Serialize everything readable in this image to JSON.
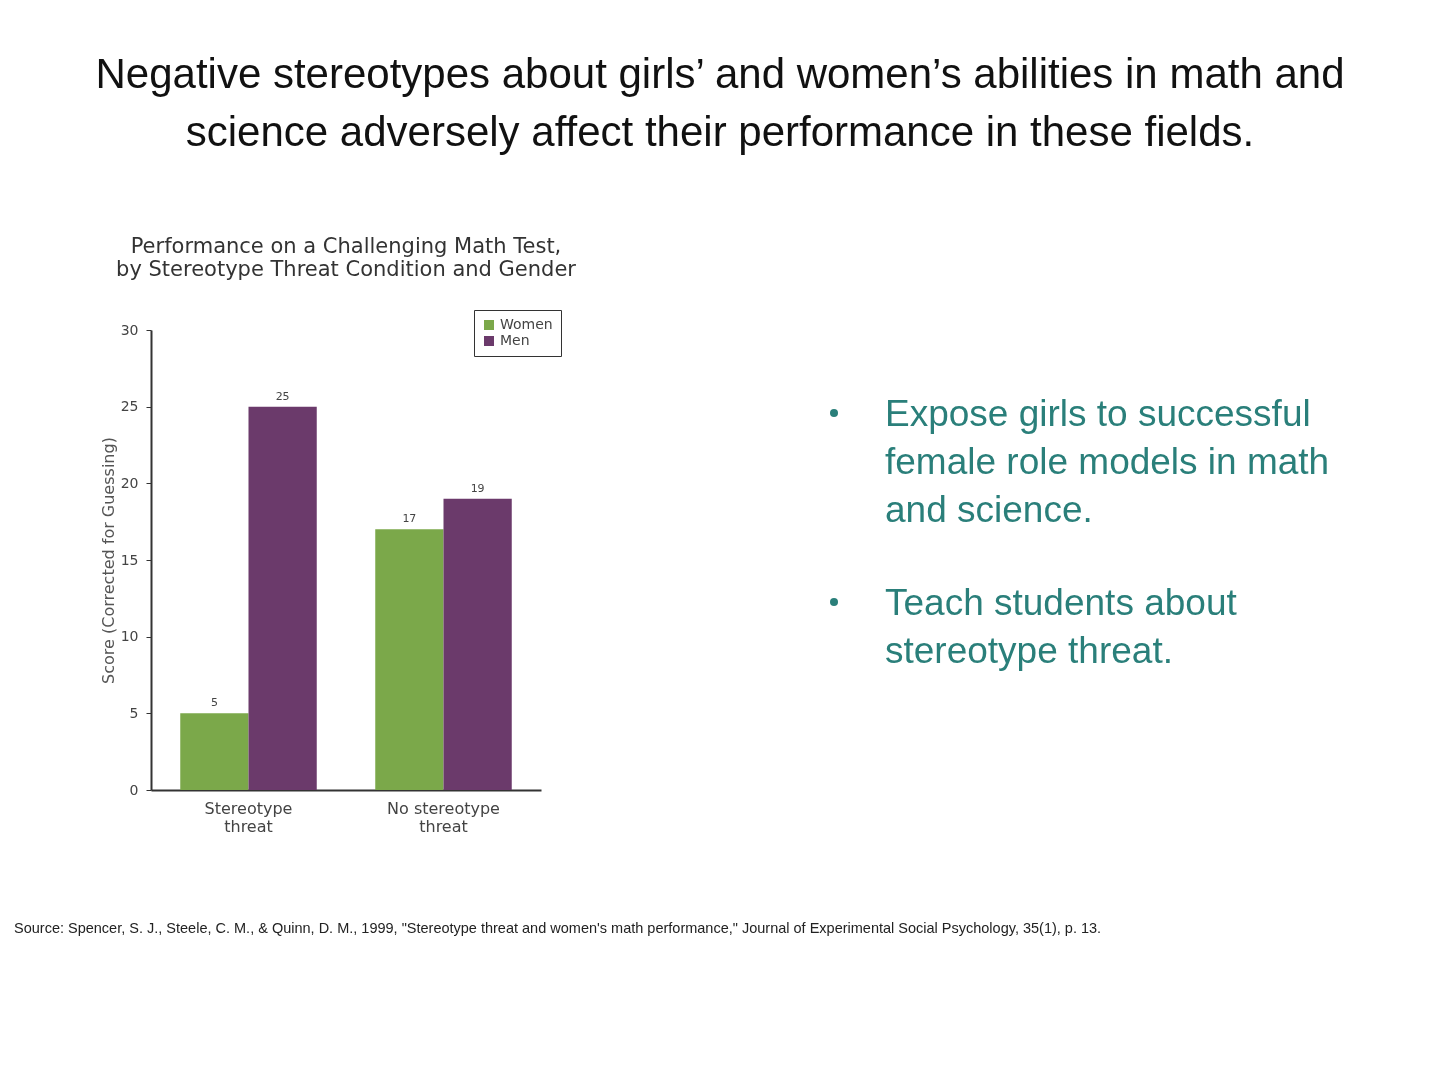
{
  "chart_data": {
    "type": "bar",
    "title": "Negative stereotypes about girls’ and women’s abilities in math and science adversely affect their performance in these fields.",
    "subtitle": "Performance on a Challenging Math Test, by Stereotype Threat Condition and Gender",
    "ylabel": "Score (Corrected for Guessing)",
    "categories": [
      "Stereotype threat",
      "No stereotype threat"
    ],
    "series": [
      {
        "name": "Women",
        "color": "#7ba84a",
        "values": [
          5,
          17
        ]
      },
      {
        "name": "Men",
        "color": "#6b3a6b",
        "values": [
          25,
          19
        ]
      }
    ],
    "ylim": [
      0,
      30
    ],
    "yticks": [
      0,
      5,
      10,
      15,
      20,
      25,
      30
    ],
    "grid": false,
    "legend": "top right",
    "data_labels": true,
    "annotations": [
      "Expose girls to successful female role models in math and science.",
      "Teach students about stereotype threat.",
      "Source: Spencer, S. J., Steele, C. M., & Quinn, D. M., 1999, \"Stereotype threat and women's math performance,\" Journal of Experimental Social Psychology, 35(1), p. 13."
    ]
  }
}
